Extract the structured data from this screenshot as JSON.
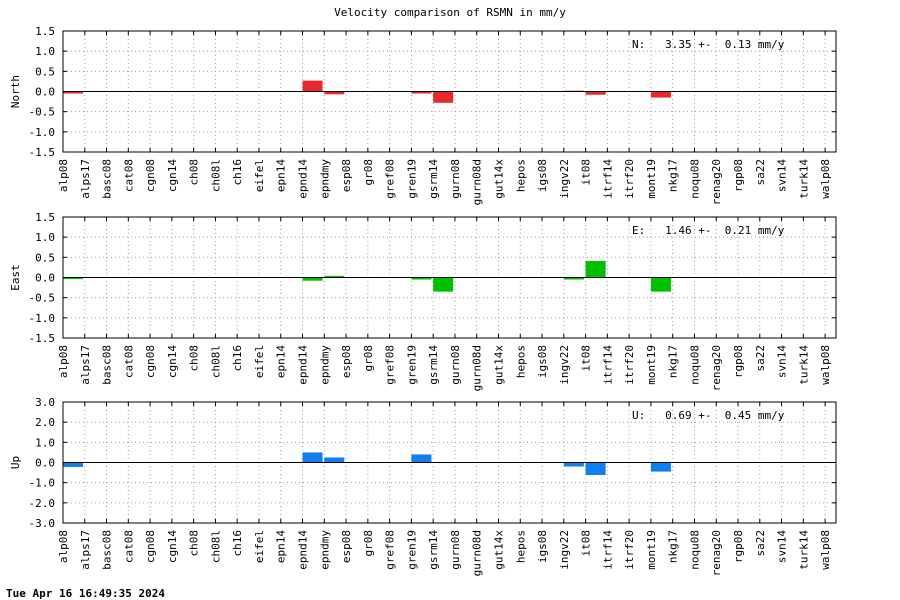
{
  "chart_data": {
    "type": "bar",
    "title": "Velocity comparison of RSMN in mm/y",
    "timestamp": "Tue Apr 16 16:49:35 2024",
    "categories": [
      "alp08",
      "alps17",
      "basc08",
      "cat08",
      "cgn08",
      "cgn14",
      "ch08",
      "ch08l",
      "ch16",
      "eifel",
      "epn14",
      "epnd14",
      "epndmy",
      "esp08",
      "gr08",
      "gref08",
      "gren19",
      "gsrm14",
      "gurn08",
      "gurn08d",
      "gut14x",
      "hepos",
      "igs08",
      "ingv22",
      "it08",
      "itrf14",
      "itrf20",
      "mont19",
      "nkg17",
      "noqu08",
      "renag20",
      "rgp08",
      "sa22",
      "svn14",
      "turk14",
      "walp08"
    ],
    "panels": [
      {
        "name": "north",
        "ylabel": "North",
        "color": "#e8282a",
        "ylim": [
          -1.5,
          1.5
        ],
        "yticks": [
          "1.5",
          "1.0",
          "0.5",
          "0.0",
          "-0.5",
          "-1.0",
          "-1.5"
        ],
        "annotation": "N:   3.35 +-  0.13 mm/y",
        "values": [
          -0.05,
          0,
          0,
          0,
          0,
          0,
          0,
          0,
          0,
          0,
          0,
          0.27,
          -0.07,
          0,
          0,
          0,
          -0.05,
          -0.28,
          0,
          0,
          0,
          0,
          0,
          0.02,
          -0.08,
          0,
          0,
          -0.15,
          0,
          0,
          0,
          0,
          0,
          0,
          0,
          0
        ]
      },
      {
        "name": "east",
        "ylabel": "East",
        "color": "#00c000",
        "ylim": [
          -1.5,
          1.5
        ],
        "yticks": [
          "1.5",
          "1.0",
          "0.5",
          "0.0",
          "-0.5",
          "-1.0",
          "-1.5"
        ],
        "annotation": "E:   1.46 +-  0.21 mm/y",
        "values": [
          -0.04,
          0,
          0,
          0,
          0,
          0,
          0,
          0,
          0,
          0,
          0,
          -0.08,
          0.04,
          0,
          0,
          0,
          -0.05,
          -0.35,
          0,
          0,
          0,
          0,
          0,
          -0.05,
          0.41,
          0,
          0,
          -0.35,
          0,
          0,
          0,
          0,
          0,
          0,
          0,
          0
        ]
      },
      {
        "name": "up",
        "ylabel": "Up",
        "color": "#1080f0",
        "ylim": [
          -3.0,
          3.0
        ],
        "yticks": [
          "3.0",
          "2.0",
          "1.0",
          "0.0",
          "-1.0",
          "-2.0",
          "-3.0"
        ],
        "annotation": "U:   0.69 +-  0.45 mm/y",
        "values": [
          -0.22,
          0,
          0,
          0,
          0,
          0,
          0,
          0,
          0,
          0,
          0,
          0.5,
          0.25,
          0,
          0,
          0,
          0.4,
          0,
          0,
          0,
          0,
          0,
          0,
          -0.2,
          -0.62,
          0,
          0,
          -0.45,
          0,
          0,
          0,
          0,
          0,
          0,
          0,
          0
        ]
      }
    ],
    "grid": true
  }
}
